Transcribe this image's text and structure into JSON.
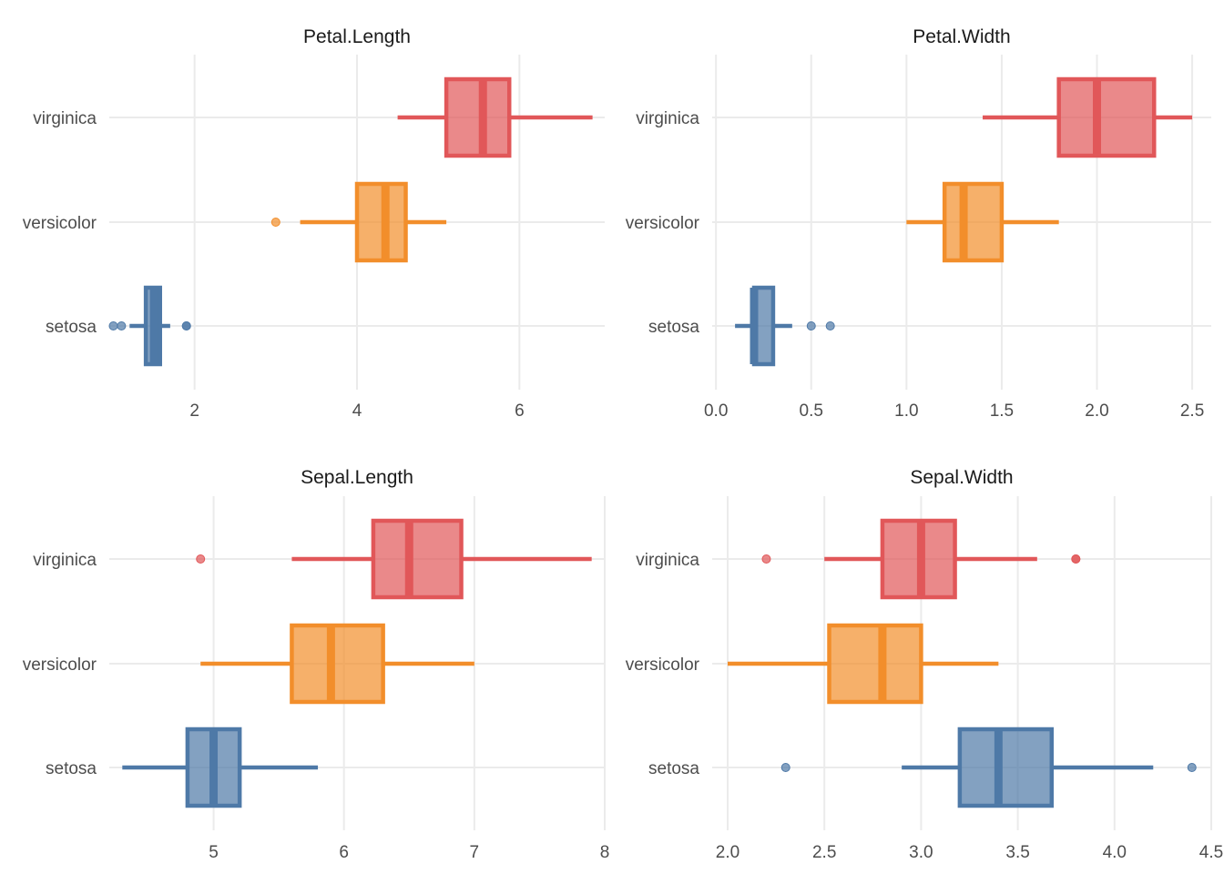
{
  "colors": {
    "setosa": "#4e79a7",
    "versicolor": "#f28e2b",
    "virginica": "#e15759",
    "grid": "#ebebeb",
    "text": "#4d4d4d"
  },
  "chart_data": [
    {
      "type": "boxplot",
      "title": "Petal.Length",
      "categories": [
        "virginica",
        "versicolor",
        "setosa"
      ],
      "xticks": [
        2,
        4,
        6
      ],
      "xlim": [
        0.95,
        7.05
      ],
      "grid": true,
      "series": [
        {
          "name": "virginica",
          "q1": 5.1,
          "median": 5.55,
          "q3": 5.875,
          "whisker_low": 4.5,
          "whisker_high": 6.9,
          "outliers": []
        },
        {
          "name": "versicolor",
          "q1": 4.0,
          "median": 4.35,
          "q3": 4.6,
          "whisker_low": 3.3,
          "whisker_high": 5.1,
          "outliers": [
            3.0
          ]
        },
        {
          "name": "setosa",
          "q1": 1.4,
          "median": 1.5,
          "q3": 1.575,
          "whisker_low": 1.2,
          "whisker_high": 1.7,
          "outliers": [
            1.0,
            1.1,
            1.9,
            1.9
          ]
        }
      ]
    },
    {
      "type": "boxplot",
      "title": "Petal.Width",
      "categories": [
        "virginica",
        "versicolor",
        "setosa"
      ],
      "xticks": [
        "0.0",
        "0.5",
        "1.0",
        "1.5",
        "2.0",
        "2.5"
      ],
      "xlim": [
        -0.02,
        2.6
      ],
      "grid": true,
      "series": [
        {
          "name": "virginica",
          "q1": 1.8,
          "median": 2.0,
          "q3": 2.3,
          "whisker_low": 1.4,
          "whisker_high": 2.5,
          "outliers": []
        },
        {
          "name": "versicolor",
          "q1": 1.2,
          "median": 1.3,
          "q3": 1.5,
          "whisker_low": 1.0,
          "whisker_high": 1.8,
          "outliers": []
        },
        {
          "name": "setosa",
          "q1": 0.2,
          "median": 0.2,
          "q3": 0.3,
          "whisker_low": 0.1,
          "whisker_high": 0.4,
          "outliers": [
            0.5,
            0.6
          ]
        }
      ]
    },
    {
      "type": "boxplot",
      "title": "Sepal.Length",
      "categories": [
        "virginica",
        "versicolor",
        "setosa"
      ],
      "xticks": [
        5,
        6,
        7,
        8
      ],
      "xlim": [
        4.2,
        8.0
      ],
      "grid": true,
      "series": [
        {
          "name": "virginica",
          "q1": 6.225,
          "median": 6.5,
          "q3": 6.9,
          "whisker_low": 5.6,
          "whisker_high": 7.9,
          "outliers": [
            4.9
          ]
        },
        {
          "name": "versicolor",
          "q1": 5.6,
          "median": 5.9,
          "q3": 6.3,
          "whisker_low": 4.9,
          "whisker_high": 7.0,
          "outliers": []
        },
        {
          "name": "setosa",
          "q1": 4.8,
          "median": 5.0,
          "q3": 5.2,
          "whisker_low": 4.3,
          "whisker_high": 5.8,
          "outliers": []
        }
      ]
    },
    {
      "type": "boxplot",
      "title": "Sepal.Width",
      "categories": [
        "virginica",
        "versicolor",
        "setosa"
      ],
      "xticks": [
        "2.0",
        "2.5",
        "3.0",
        "3.5",
        "4.0",
        "4.5"
      ],
      "xlim": [
        1.92,
        4.5
      ],
      "grid": true,
      "series": [
        {
          "name": "virginica",
          "q1": 2.8,
          "median": 3.0,
          "q3": 3.175,
          "whisker_low": 2.5,
          "whisker_high": 3.6,
          "outliers": [
            2.2,
            3.8,
            3.8
          ]
        },
        {
          "name": "versicolor",
          "q1": 2.525,
          "median": 2.8,
          "q3": 3.0,
          "whisker_low": 2.0,
          "whisker_high": 3.4,
          "outliers": []
        },
        {
          "name": "setosa",
          "q1": 3.2,
          "median": 3.4,
          "q3": 3.675,
          "whisker_low": 2.9,
          "whisker_high": 4.2,
          "outliers": [
            2.3,
            4.4
          ]
        }
      ]
    }
  ]
}
